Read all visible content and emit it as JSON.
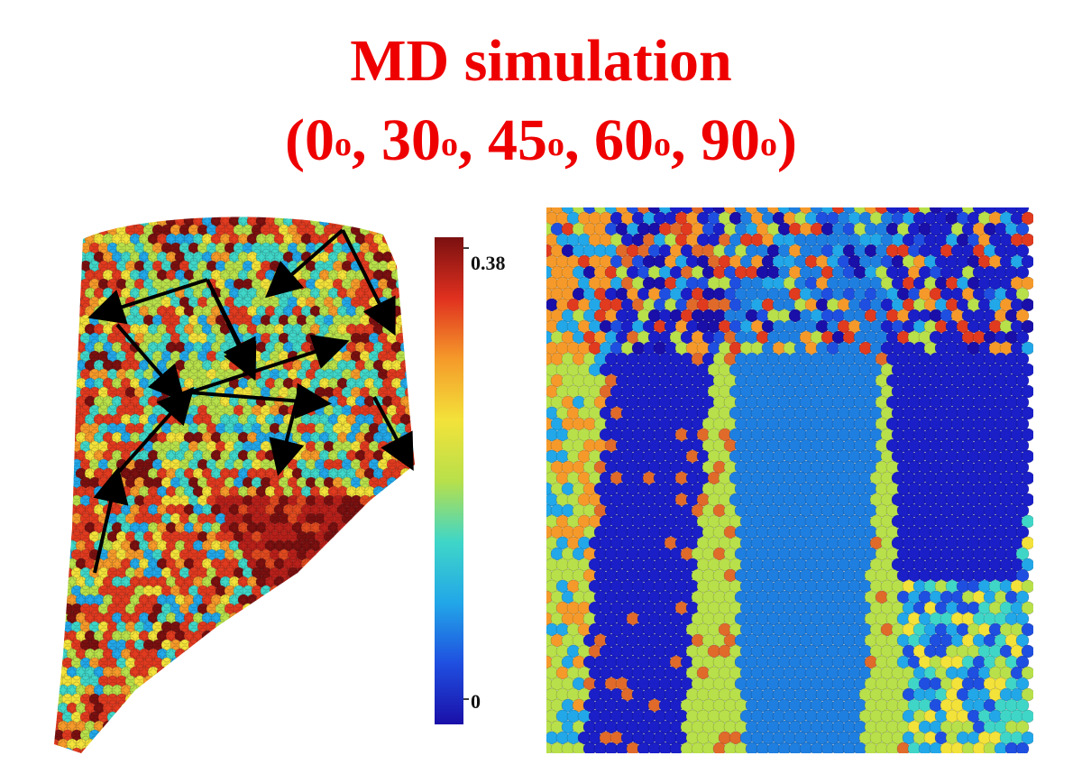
{
  "title_line1": "MD simulation",
  "title_line2": {
    "open": "(",
    "angles": [
      "0",
      "30",
      "45",
      "60",
      "90"
    ],
    "degree_mark": "o",
    "separator": ", ",
    "close": ")"
  },
  "colorbar": {
    "max_label": "0.38",
    "min_label": "0",
    "max_value": 0.38,
    "min_value": 0,
    "colors": [
      "#1a0fa8",
      "#1f4fe0",
      "#22a7e8",
      "#3fd6c8",
      "#b8e04a",
      "#f3e23a",
      "#f59a2a",
      "#e0301f",
      "#7a1010"
    ]
  },
  "colors": {
    "title": "#ee0000",
    "arrows": "#000000"
  }
}
